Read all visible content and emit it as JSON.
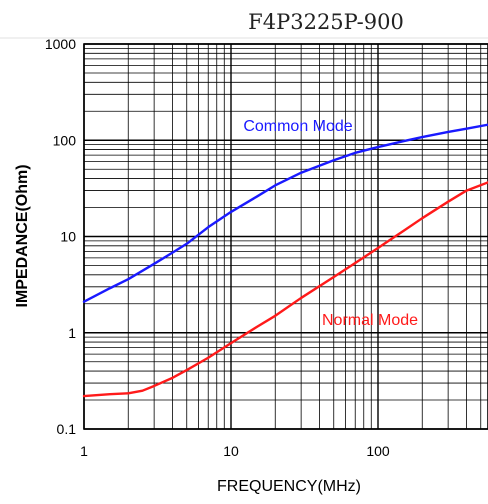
{
  "chart_data": {
    "type": "line",
    "title": "F4P3225P-900",
    "xlabel": "FREQUENCY(MHz)",
    "ylabel": "IMPEDANCE(Ohm)",
    "x_scale": "log",
    "y_scale": "log",
    "xlim": [
      1,
      600
    ],
    "ylim": [
      0.1,
      1000
    ],
    "x_ticks": [
      {
        "value": 1,
        "label": "1"
      },
      {
        "value": 10,
        "label": "10"
      },
      {
        "value": 100,
        "label": "100"
      }
    ],
    "y_ticks": [
      {
        "value": 0.1,
        "label": "0.1"
      },
      {
        "value": 1,
        "label": "1"
      },
      {
        "value": 10,
        "label": "10"
      },
      {
        "value": 100,
        "label": "100"
      },
      {
        "value": 1000,
        "label": "1000"
      }
    ],
    "grid": true,
    "series": [
      {
        "name": "Common Mode",
        "color": "#1a1aff",
        "x": [
          1,
          1.5,
          2,
          3,
          4,
          5,
          7,
          10,
          15,
          20,
          30,
          50,
          70,
          100,
          150,
          200,
          300,
          400,
          600
        ],
        "y": [
          2.1,
          2.9,
          3.6,
          5.2,
          6.8,
          8.4,
          12.5,
          18,
          26,
          34,
          46,
          62,
          74,
          85,
          98,
          108,
          122,
          132,
          148
        ]
      },
      {
        "name": "Normal Mode",
        "color": "#ff1a1a",
        "x": [
          1,
          1.5,
          2,
          2.5,
          3,
          4,
          5,
          7,
          10,
          15,
          20,
          30,
          50,
          70,
          100,
          150,
          200,
          300,
          400,
          600
        ],
        "y": [
          0.22,
          0.23,
          0.235,
          0.25,
          0.28,
          0.34,
          0.41,
          0.55,
          0.78,
          1.15,
          1.5,
          2.3,
          3.8,
          5.3,
          7.6,
          11.5,
          15.5,
          23,
          30,
          38
        ]
      }
    ]
  }
}
